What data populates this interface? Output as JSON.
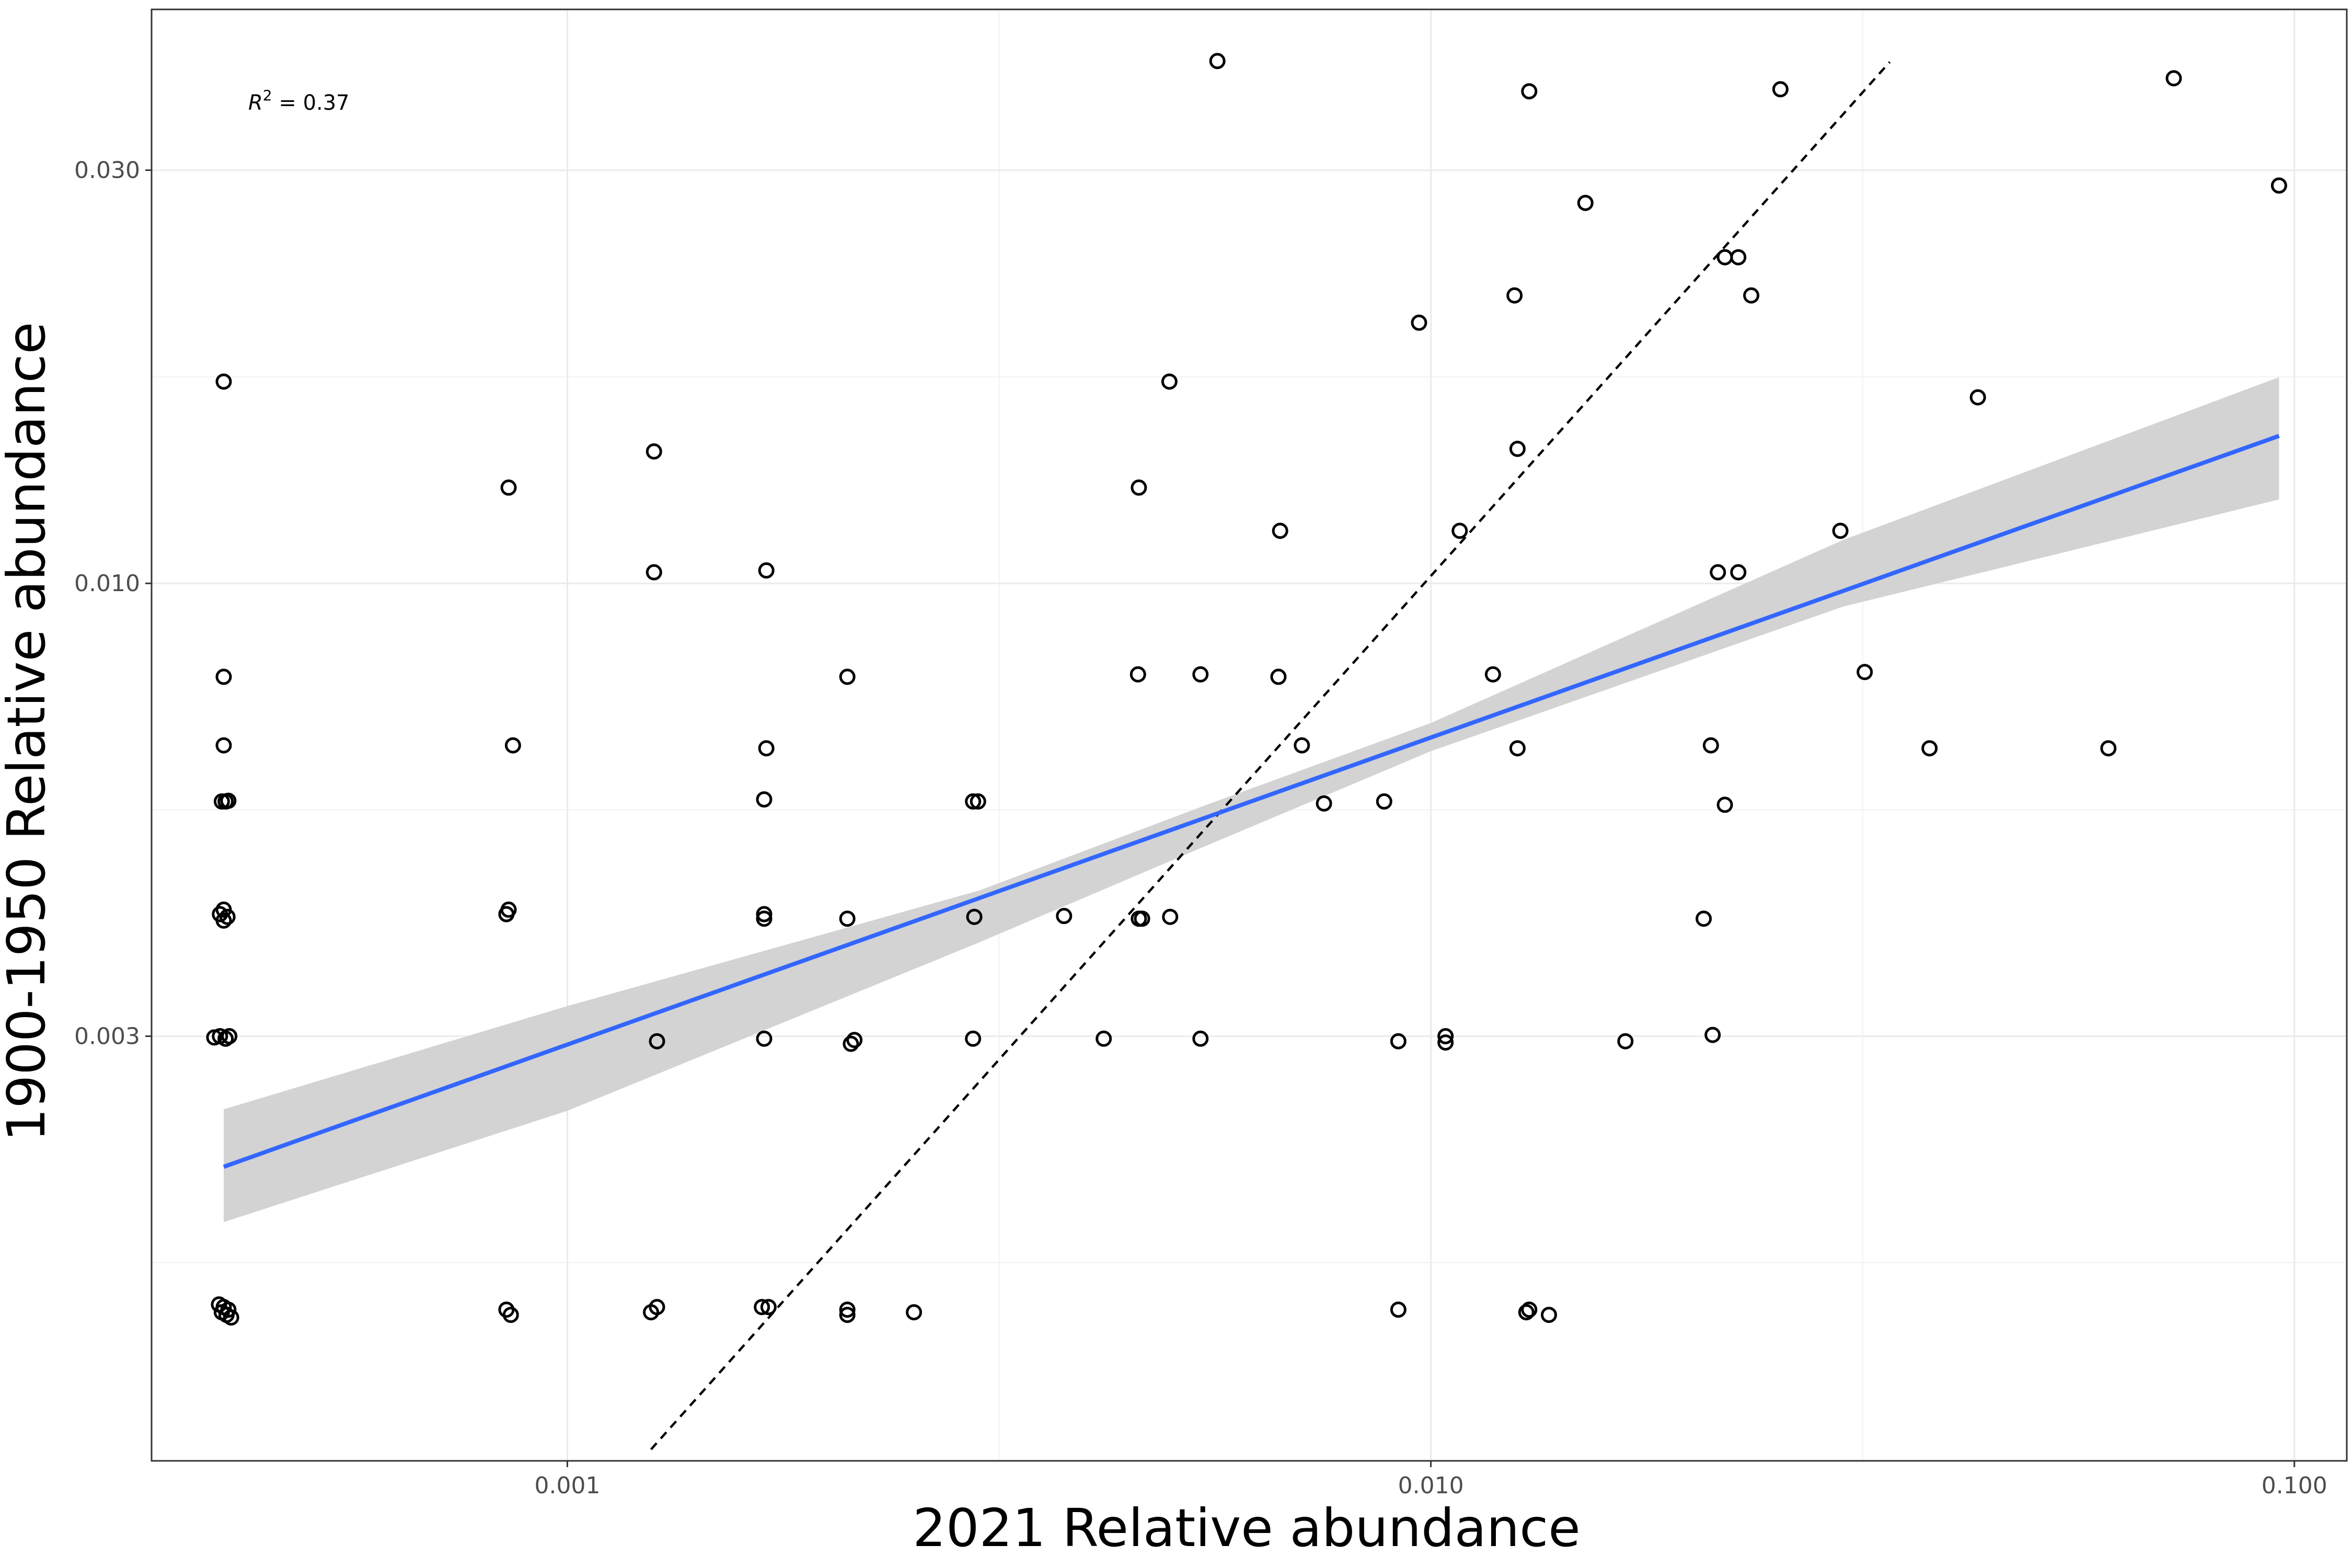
{
  "chart_data": {
    "type": "scatter",
    "xlabel": "2021 Relative abundance",
    "ylabel": "1900-1950 Relative abundance",
    "x_scale": "log10",
    "y_scale": "log10",
    "xlim": [
      0.00033,
      0.115
    ],
    "ylim": [
      0.00097,
      0.046
    ],
    "x_ticks": [
      {
        "value": 0.001,
        "label": "0.001"
      },
      {
        "value": 0.01,
        "label": "0.010"
      },
      {
        "value": 0.1,
        "label": "0.100"
      }
    ],
    "y_ticks": [
      {
        "value": 0.003,
        "label": "0.003"
      },
      {
        "value": 0.01,
        "label": "0.010"
      },
      {
        "value": 0.03,
        "label": "0.030"
      }
    ],
    "grid": true,
    "annotation": {
      "r2_prefix": "R",
      "r2_exp": "2",
      "r2_value": " = 0.37"
    },
    "reference_line": {
      "style": "dashed",
      "color": "#000000",
      "x": [
        0.00125,
        0.034
      ],
      "y": [
        0.001,
        0.04
      ]
    },
    "fit_line": {
      "color": "#3366ff",
      "x": [
        0.0004,
        0.096
      ],
      "y": [
        0.00212,
        0.0148
      ]
    },
    "confidence_band": {
      "color": "#d3d3d3",
      "x": [
        0.0004,
        0.001,
        0.003,
        0.0055,
        0.01,
        0.03,
        0.096
      ],
      "lower": [
        0.00183,
        0.00246,
        0.00385,
        0.00498,
        0.0064,
        0.0094,
        0.0125
      ],
      "upper": [
        0.00247,
        0.00325,
        0.00442,
        0.00555,
        0.0069,
        0.01122,
        0.0173
      ]
    },
    "points": [
      {
        "x": 0.0004,
        "y": 0.0171
      },
      {
        "x": 0.0004,
        "y": 0.0078
      },
      {
        "x": 0.0004,
        "y": 0.0065
      },
      {
        "x": 0.000398,
        "y": 0.0056
      },
      {
        "x": 0.000402,
        "y": 0.0056
      },
      {
        "x": 0.000405,
        "y": 0.00561
      },
      {
        "x": 0.000396,
        "y": 0.00415
      },
      {
        "x": 0.0004,
        "y": 0.0042
      },
      {
        "x": 0.000404,
        "y": 0.00412
      },
      {
        "x": 0.0004,
        "y": 0.00408
      },
      {
        "x": 0.00039,
        "y": 0.00299
      },
      {
        "x": 0.000396,
        "y": 0.003
      },
      {
        "x": 0.000402,
        "y": 0.00298
      },
      {
        "x": 0.000406,
        "y": 0.003
      },
      {
        "x": 0.000395,
        "y": 0.00147
      },
      {
        "x": 0.0004,
        "y": 0.00146
      },
      {
        "x": 0.000405,
        "y": 0.00145
      },
      {
        "x": 0.000398,
        "y": 0.00144
      },
      {
        "x": 0.000403,
        "y": 0.00143
      },
      {
        "x": 0.000408,
        "y": 0.00142
      },
      {
        "x": 0.000855,
        "y": 0.0129
      },
      {
        "x": 0.000865,
        "y": 0.0065
      },
      {
        "x": 0.00085,
        "y": 0.00415
      },
      {
        "x": 0.000855,
        "y": 0.0042
      },
      {
        "x": 0.00085,
        "y": 0.00145
      },
      {
        "x": 0.00086,
        "y": 0.00143
      },
      {
        "x": 0.00126,
        "y": 0.0142
      },
      {
        "x": 0.00126,
        "y": 0.0103
      },
      {
        "x": 0.00127,
        "y": 0.00296
      },
      {
        "x": 0.00125,
        "y": 0.00144
      },
      {
        "x": 0.00127,
        "y": 0.00146
      },
      {
        "x": 0.0017,
        "y": 0.01035
      },
      {
        "x": 0.0017,
        "y": 0.00645
      },
      {
        "x": 0.00169,
        "y": 0.00563
      },
      {
        "x": 0.00169,
        "y": 0.00415
      },
      {
        "x": 0.00169,
        "y": 0.0041
      },
      {
        "x": 0.00169,
        "y": 0.00298
      },
      {
        "x": 0.00168,
        "y": 0.00146
      },
      {
        "x": 0.00171,
        "y": 0.00146
      },
      {
        "x": 0.00211,
        "y": 0.0078
      },
      {
        "x": 0.00211,
        "y": 0.0041
      },
      {
        "x": 0.00215,
        "y": 0.00297
      },
      {
        "x": 0.00213,
        "y": 0.00294
      },
      {
        "x": 0.00211,
        "y": 0.00145
      },
      {
        "x": 0.00211,
        "y": 0.00143
      },
      {
        "x": 0.00252,
        "y": 0.00144
      },
      {
        "x": 0.00295,
        "y": 0.0056
      },
      {
        "x": 0.00299,
        "y": 0.0056
      },
      {
        "x": 0.00296,
        "y": 0.00412
      },
      {
        "x": 0.00295,
        "y": 0.00298
      },
      {
        "x": 0.00376,
        "y": 0.00413
      },
      {
        "x": 0.00418,
        "y": 0.00298
      },
      {
        "x": 0.00459,
        "y": 0.0129
      },
      {
        "x": 0.00458,
        "y": 0.00785
      },
      {
        "x": 0.00459,
        "y": 0.0041
      },
      {
        "x": 0.00463,
        "y": 0.0041
      },
      {
        "x": 0.00498,
        "y": 0.0171
      },
      {
        "x": 0.00499,
        "y": 0.00412
      },
      {
        "x": 0.00541,
        "y": 0.00785
      },
      {
        "x": 0.00541,
        "y": 0.00298
      },
      {
        "x": 0.00566,
        "y": 0.0401
      },
      {
        "x": 0.00669,
        "y": 0.0115
      },
      {
        "x": 0.00666,
        "y": 0.0078
      },
      {
        "x": 0.00709,
        "y": 0.0065
      },
      {
        "x": 0.00752,
        "y": 0.00557
      },
      {
        "x": 0.00883,
        "y": 0.0056
      },
      {
        "x": 0.00917,
        "y": 0.00296
      },
      {
        "x": 0.00917,
        "y": 0.00145
      },
      {
        "x": 0.00969,
        "y": 0.02
      },
      {
        "x": 0.0104,
        "y": 0.003
      },
      {
        "x": 0.0104,
        "y": 0.00295
      },
      {
        "x": 0.0108,
        "y": 0.0115
      },
      {
        "x": 0.0118,
        "y": 0.00785
      },
      {
        "x": 0.0125,
        "y": 0.0215
      },
      {
        "x": 0.0126,
        "y": 0.0143
      },
      {
        "x": 0.0126,
        "y": 0.00645
      },
      {
        "x": 0.013,
        "y": 0.037
      },
      {
        "x": 0.0129,
        "y": 0.00144
      },
      {
        "x": 0.013,
        "y": 0.00145
      },
      {
        "x": 0.0137,
        "y": 0.00143
      },
      {
        "x": 0.0151,
        "y": 0.0275
      },
      {
        "x": 0.0168,
        "y": 0.00296
      },
      {
        "x": 0.0207,
        "y": 0.0041
      },
      {
        "x": 0.0211,
        "y": 0.0065
      },
      {
        "x": 0.0212,
        "y": 0.00301
      },
      {
        "x": 0.0215,
        "y": 0.0103
      },
      {
        "x": 0.0219,
        "y": 0.0238
      },
      {
        "x": 0.0219,
        "y": 0.00555
      },
      {
        "x": 0.0227,
        "y": 0.0238
      },
      {
        "x": 0.0227,
        "y": 0.0103
      },
      {
        "x": 0.0235,
        "y": 0.0215
      },
      {
        "x": 0.0254,
        "y": 0.0372
      },
      {
        "x": 0.0298,
        "y": 0.0115
      },
      {
        "x": 0.0318,
        "y": 0.0079
      },
      {
        "x": 0.0378,
        "y": 0.00645
      },
      {
        "x": 0.043,
        "y": 0.0164
      },
      {
        "x": 0.0609,
        "y": 0.00645
      },
      {
        "x": 0.0725,
        "y": 0.0383
      },
      {
        "x": 0.096,
        "y": 0.0288
      }
    ]
  }
}
